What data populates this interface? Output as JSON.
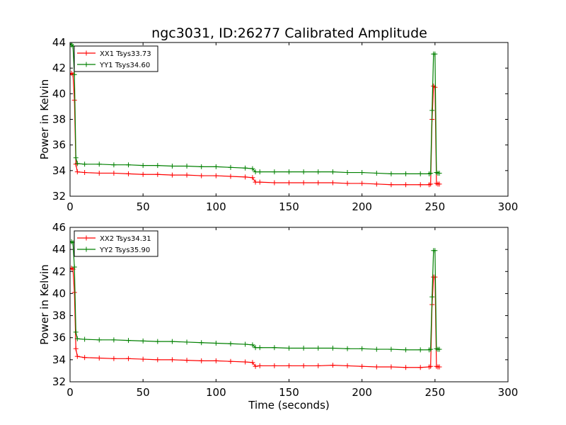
{
  "title": "ngc3031, ID:26277 Calibrated Amplitude",
  "chart_data": [
    {
      "type": "line",
      "title": "ngc3031, ID:26277 Calibrated Amplitude",
      "xlabel": "",
      "ylabel": "Power in Kelvin",
      "xlim": [
        0,
        300
      ],
      "ylim": [
        32,
        44
      ],
      "xticks": [
        0,
        50,
        100,
        150,
        200,
        250,
        300
      ],
      "yticks": [
        32,
        34,
        36,
        38,
        40,
        42,
        44
      ],
      "grid": false,
      "legend_position": "top-left",
      "series": [
        {
          "name": "XX1 Tsys33.73",
          "color": "#ff0000",
          "x": [
            0,
            1,
            2,
            3,
            4,
            5,
            10,
            20,
            30,
            40,
            50,
            60,
            70,
            80,
            90,
            100,
            110,
            120,
            125,
            127,
            130,
            140,
            150,
            160,
            170,
            180,
            190,
            200,
            210,
            220,
            230,
            240,
            246,
            247,
            248,
            249,
            250,
            251,
            252,
            253
          ],
          "y": [
            41.5,
            41.6,
            41.5,
            39.5,
            34.5,
            33.9,
            33.85,
            33.8,
            33.8,
            33.75,
            33.7,
            33.7,
            33.65,
            33.65,
            33.6,
            33.6,
            33.55,
            33.5,
            33.45,
            33.1,
            33.1,
            33.05,
            33.05,
            33.05,
            33.05,
            33.05,
            33.0,
            33.0,
            32.95,
            32.9,
            32.9,
            32.9,
            32.9,
            32.95,
            38.0,
            40.6,
            40.5,
            33.0,
            32.95,
            32.95
          ]
        },
        {
          "name": "YY1 Tsys34.60",
          "color": "#008000",
          "x": [
            0,
            1,
            2,
            3,
            4,
            5,
            10,
            20,
            30,
            40,
            50,
            60,
            70,
            80,
            90,
            100,
            110,
            120,
            125,
            127,
            130,
            140,
            150,
            160,
            170,
            180,
            190,
            200,
            210,
            220,
            230,
            240,
            246,
            247,
            248,
            249,
            250,
            251,
            252,
            253
          ],
          "y": [
            43.9,
            43.8,
            43.7,
            41.5,
            35.0,
            34.55,
            34.5,
            34.5,
            34.45,
            34.45,
            34.4,
            34.4,
            34.35,
            34.35,
            34.3,
            34.3,
            34.25,
            34.2,
            34.15,
            33.9,
            33.9,
            33.9,
            33.9,
            33.9,
            33.9,
            33.9,
            33.85,
            33.85,
            33.8,
            33.75,
            33.75,
            33.75,
            33.75,
            33.8,
            38.7,
            43.1,
            43.1,
            33.85,
            33.8,
            33.8
          ]
        }
      ]
    },
    {
      "type": "line",
      "title": "",
      "xlabel": "Time (seconds)",
      "ylabel": "Power in Kelvin",
      "xlim": [
        0,
        300
      ],
      "ylim": [
        32,
        46
      ],
      "xticks": [
        0,
        50,
        100,
        150,
        200,
        250,
        300
      ],
      "yticks": [
        32,
        34,
        36,
        38,
        40,
        42,
        44,
        46
      ],
      "grid": false,
      "legend_position": "top-left",
      "series": [
        {
          "name": "XX2 Tsys34.31",
          "color": "#ff0000",
          "x": [
            0,
            1,
            2,
            3,
            4,
            5,
            10,
            20,
            30,
            40,
            50,
            60,
            70,
            80,
            90,
            100,
            110,
            120,
            125,
            127,
            130,
            140,
            150,
            160,
            170,
            180,
            190,
            200,
            210,
            220,
            230,
            240,
            246,
            247,
            248,
            249,
            250,
            251,
            252,
            253
          ],
          "y": [
            42.3,
            42.3,
            42.2,
            40.1,
            35.0,
            34.3,
            34.2,
            34.15,
            34.1,
            34.1,
            34.05,
            34.0,
            34.0,
            33.95,
            33.9,
            33.9,
            33.85,
            33.8,
            33.75,
            33.4,
            33.45,
            33.45,
            33.45,
            33.45,
            33.45,
            33.5,
            33.45,
            33.4,
            33.35,
            33.35,
            33.3,
            33.3,
            33.35,
            33.4,
            39.0,
            41.5,
            41.5,
            33.4,
            33.35,
            33.35
          ]
        },
        {
          "name": "YY2 Tsys35.90",
          "color": "#008000",
          "x": [
            0,
            1,
            2,
            3,
            4,
            5,
            10,
            20,
            30,
            40,
            50,
            60,
            70,
            80,
            90,
            100,
            110,
            120,
            125,
            127,
            130,
            140,
            150,
            160,
            170,
            180,
            190,
            200,
            210,
            220,
            230,
            240,
            246,
            247,
            248,
            249,
            250,
            251,
            252,
            253
          ],
          "y": [
            44.7,
            44.7,
            44.6,
            42.4,
            36.5,
            35.9,
            35.85,
            35.8,
            35.8,
            35.75,
            35.7,
            35.65,
            35.65,
            35.6,
            35.55,
            35.5,
            35.45,
            35.4,
            35.35,
            35.1,
            35.1,
            35.1,
            35.05,
            35.05,
            35.05,
            35.05,
            35.0,
            35.0,
            34.95,
            34.95,
            34.9,
            34.9,
            34.9,
            34.95,
            39.7,
            43.9,
            43.9,
            35.0,
            34.95,
            34.95
          ]
        }
      ]
    }
  ]
}
